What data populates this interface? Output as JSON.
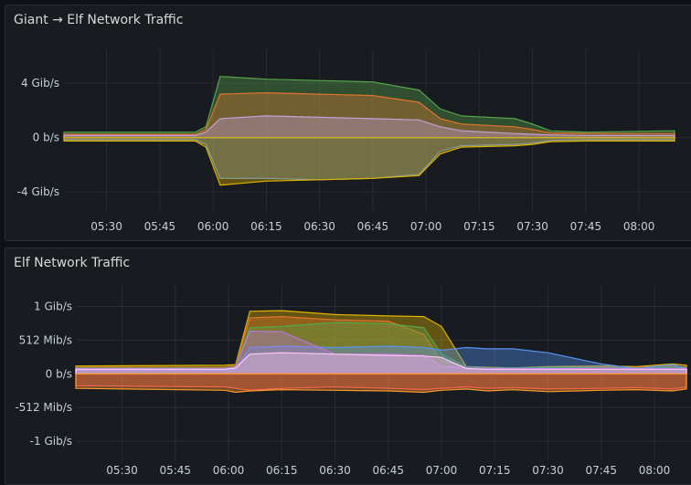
{
  "panels": [
    {
      "title": "Giant → Elf Network Traffic",
      "chart_data": {
        "type": "area",
        "y_ticks": [
          "4 Gib/s",
          "0 b/s",
          "-4 Gib/s"
        ],
        "y_tick_values": [
          4,
          0,
          -4
        ],
        "ylim": [
          -5.4,
          6.5
        ],
        "x_ticks": [
          "05:30",
          "05:45",
          "06:00",
          "06:15",
          "06:30",
          "06:45",
          "07:00",
          "07:15",
          "07:30",
          "07:45",
          "08:00"
        ],
        "x_tick_minutes": [
          330,
          345,
          360,
          375,
          390,
          405,
          420,
          435,
          450,
          465,
          480
        ],
        "xlim": [
          318,
          490
        ],
        "x": [
          318,
          355,
          358,
          362,
          375,
          390,
          405,
          418,
          424,
          430,
          445,
          450,
          455,
          465,
          490
        ],
        "series": [
          {
            "color": "#56a64b",
            "values": [
              0.4,
              0.4,
              0.8,
              4.5,
              4.3,
              4.2,
              4.1,
              3.5,
              2.1,
              1.6,
              1.4,
              1.0,
              0.5,
              0.4,
              0.5
            ]
          },
          {
            "color": "#e0752d",
            "values": [
              0.25,
              0.25,
              0.6,
              3.2,
              3.3,
              3.2,
              3.1,
              2.6,
              1.4,
              1.0,
              0.8,
              0.6,
              0.35,
              0.3,
              0.3
            ]
          },
          {
            "color": "#c4a0d9",
            "values": [
              0.15,
              0.15,
              0.4,
              1.4,
              1.6,
              1.5,
              1.4,
              1.3,
              0.8,
              0.5,
              0.3,
              0.25,
              0.2,
              0.15,
              0.15
            ]
          },
          {
            "color": "#5794f2",
            "values": [
              -0.15,
              -0.15,
              -0.5,
              -3.0,
              -3.0,
              -3.1,
              -3.0,
              -2.7,
              -1.0,
              -0.6,
              -0.5,
              -0.4,
              -0.2,
              -0.15,
              -0.15
            ]
          },
          {
            "color": "#e0b400",
            "values": [
              -0.25,
              -0.25,
              -0.7,
              -3.5,
              -3.2,
              -3.1,
              -3.0,
              -2.8,
              -1.2,
              -0.7,
              -0.6,
              -0.5,
              -0.3,
              -0.25,
              -0.25
            ]
          }
        ]
      }
    },
    {
      "title": "Elf Network Traffic",
      "chart_data": {
        "type": "area",
        "y_ticks": [
          "1 Gib/s",
          "512 Mib/s",
          "0 b/s",
          "-512 Mib/s",
          "-1 Gib/s"
        ],
        "y_tick_values": [
          1024,
          512,
          0,
          -512,
          -1024
        ],
        "ylim": [
          -1300,
          1350
        ],
        "x_ticks": [
          "05:30",
          "05:45",
          "06:00",
          "06:15",
          "06:30",
          "06:45",
          "07:00",
          "07:15",
          "07:30",
          "07:45",
          "08:00"
        ],
        "x_tick_minutes": [
          330,
          345,
          360,
          375,
          390,
          405,
          420,
          435,
          450,
          465,
          480
        ],
        "xlim": [
          317,
          489
        ],
        "x": [
          317,
          359,
          362,
          366,
          375,
          390,
          405,
          415,
          420,
          427,
          433,
          440,
          450,
          465,
          475,
          485,
          489
        ],
        "series": [
          {
            "color": "#e0b400",
            "values": [
              120,
              130,
              140,
              950,
              960,
              900,
              880,
              870,
              720,
              110,
              100,
              90,
              110,
              120,
              110,
              150,
              130
            ]
          },
          {
            "color": "#e0752d",
            "values": [
              100,
              100,
              120,
              850,
              870,
              820,
              800,
              600,
              200,
              100,
              80,
              80,
              100,
              100,
              100,
              120,
              100
            ]
          },
          {
            "color": "#56a64b",
            "values": [
              90,
              90,
              110,
              700,
              720,
              780,
              760,
              700,
              300,
              110,
              90,
              90,
              100,
              90,
              90,
              100,
              90
            ]
          },
          {
            "color": "#5794f2",
            "values": [
              60,
              60,
              80,
              400,
              420,
              400,
              420,
              400,
              360,
              400,
              380,
              380,
              320,
              150,
              80,
              140,
              80
            ]
          },
          {
            "color": "#b877d9",
            "values": [
              80,
              80,
              100,
              650,
              640,
              300,
              300,
              280,
              120,
              90,
              80,
              80,
              80,
              80,
              80,
              80,
              80
            ]
          },
          {
            "color": "#ffc9f5",
            "values": [
              70,
              70,
              90,
              300,
              320,
              300,
              280,
              270,
              250,
              80,
              70,
              70,
              70,
              70,
              70,
              70,
              70
            ]
          },
          {
            "color": "#f2495c",
            "values": [
              -180,
              -200,
              -220,
              -250,
              -220,
              -200,
              -220,
              -240,
              -220,
              -200,
              -220,
              -210,
              -230,
              -220,
              -210,
              -230,
              -200
            ]
          },
          {
            "color": "#ff9830",
            "values": [
              -220,
              -250,
              -280,
              -260,
              -240,
              -250,
              -260,
              -280,
              -250,
              -230,
              -260,
              -240,
              -270,
              -250,
              -240,
              -260,
              -230
            ]
          }
        ]
      }
    }
  ]
}
